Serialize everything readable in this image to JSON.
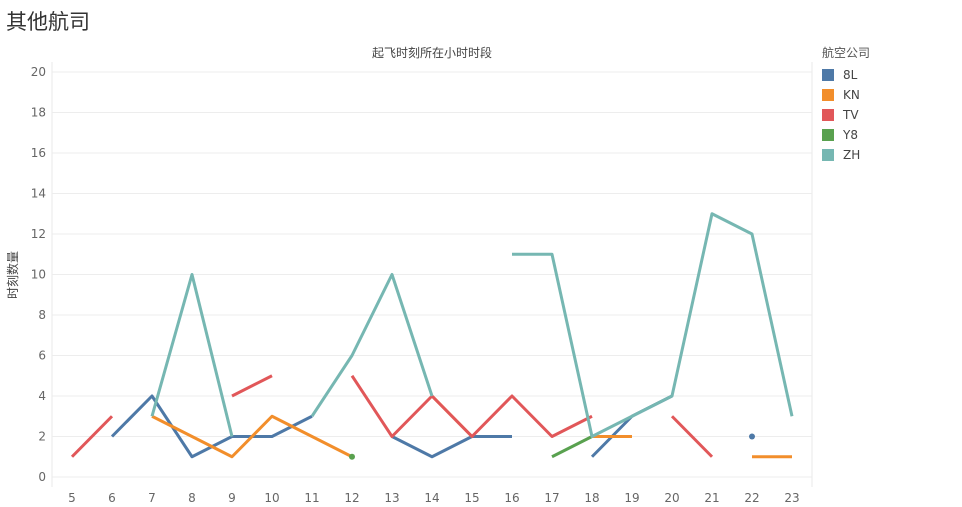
{
  "page": {
    "title": "其他航司"
  },
  "chart_data": {
    "type": "line",
    "title": "起飞时刻所在小时时段",
    "ylabel": "时刻数量",
    "xlabel": "",
    "x": [
      5,
      6,
      7,
      8,
      9,
      10,
      11,
      12,
      13,
      14,
      15,
      16,
      17,
      18,
      19,
      20,
      21,
      22,
      23
    ],
    "ylim": [
      0,
      20
    ],
    "yticks": [
      0,
      2,
      4,
      6,
      8,
      10,
      12,
      14,
      16,
      18,
      20
    ],
    "legend": {
      "title": "航空公司",
      "placement": "right"
    },
    "series": [
      {
        "name": "8L",
        "color": "#4e79a7",
        "values": [
          null,
          2,
          4,
          1,
          2,
          2,
          3,
          null,
          2,
          1,
          2,
          2,
          null,
          1,
          3,
          4,
          null,
          2,
          null
        ]
      },
      {
        "name": "KN",
        "color": "#f28e2b",
        "values": [
          null,
          null,
          3,
          2,
          1,
          3,
          2,
          1,
          null,
          4,
          2,
          null,
          null,
          2,
          2,
          null,
          null,
          1,
          1
        ]
      },
      {
        "name": "TV",
        "color": "#e15759",
        "values": [
          1,
          3,
          null,
          null,
          4,
          5,
          null,
          5,
          2,
          4,
          2,
          4,
          2,
          3,
          null,
          3,
          1,
          null,
          null
        ]
      },
      {
        "name": "Y8",
        "color": "#59a14f",
        "values": [
          null,
          null,
          null,
          null,
          null,
          null,
          null,
          1,
          null,
          null,
          null,
          null,
          1,
          2,
          null,
          null,
          null,
          null,
          null
        ]
      },
      {
        "name": "ZH",
        "color": "#76b7b2",
        "values": [
          null,
          null,
          3,
          10,
          2,
          null,
          3,
          6,
          10,
          4,
          null,
          11,
          11,
          2,
          3,
          4,
          13,
          12,
          3
        ]
      }
    ]
  }
}
